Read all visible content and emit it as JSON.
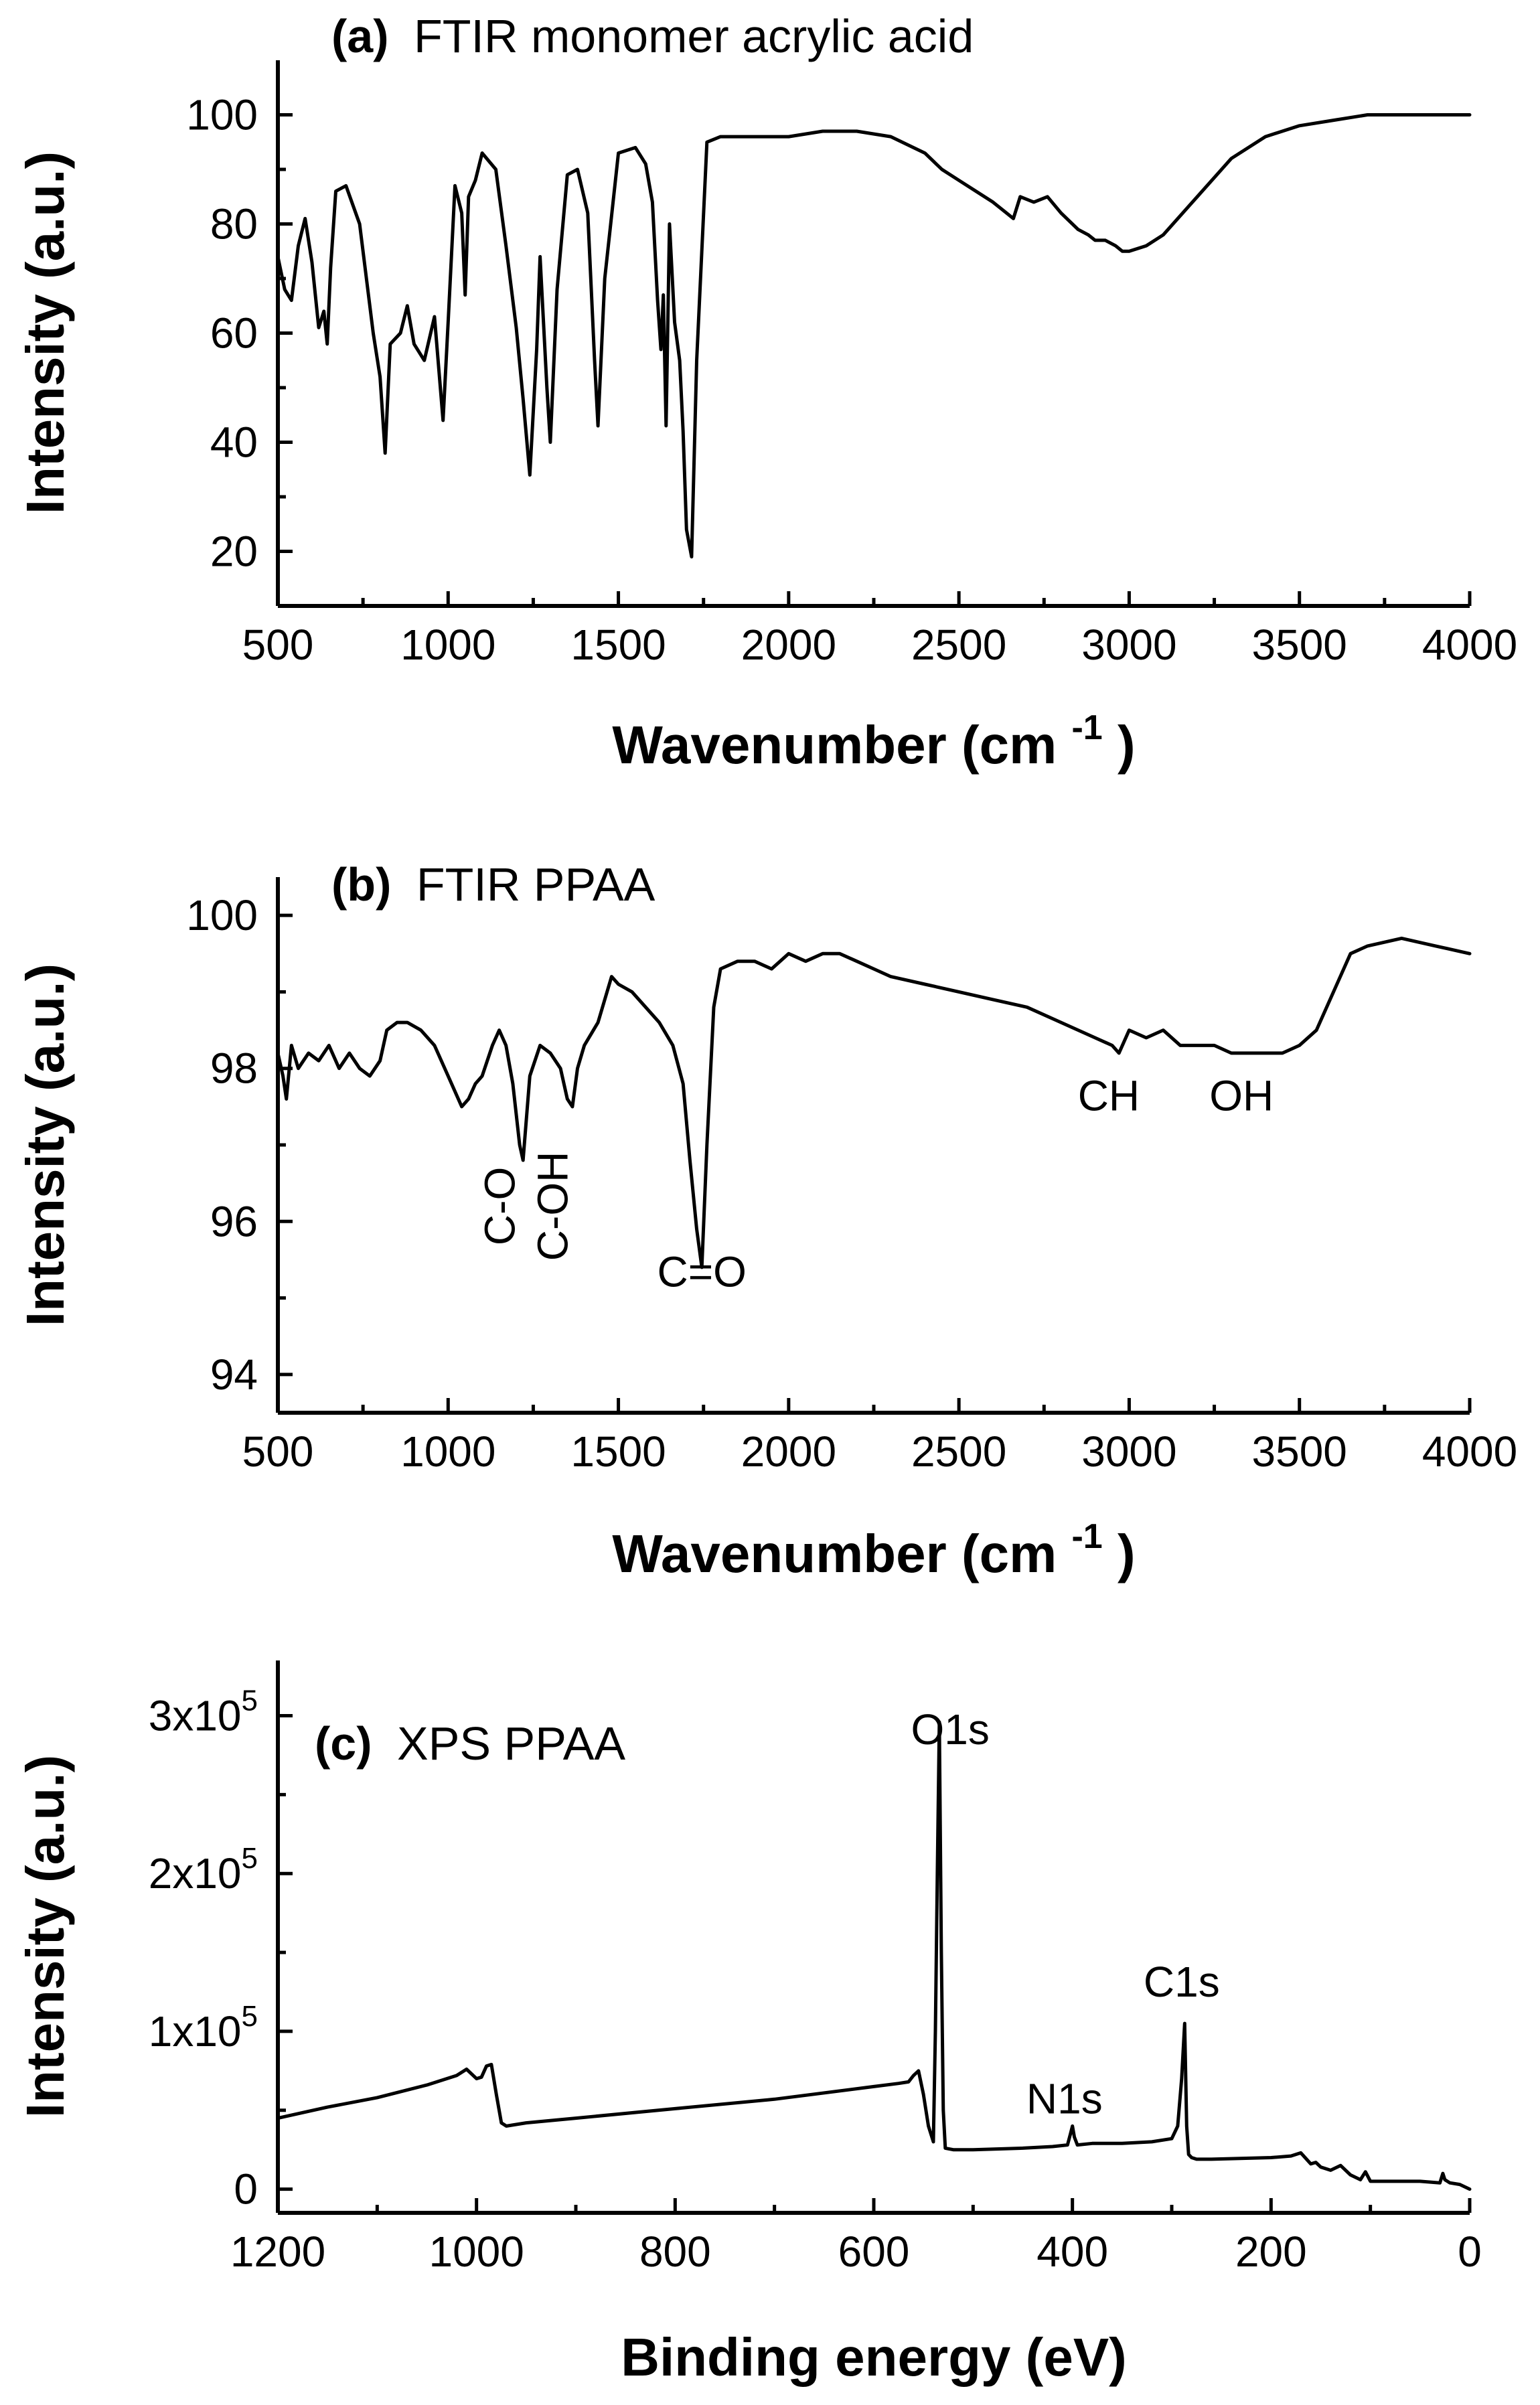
{
  "chart_data": [
    {
      "type": "line",
      "title_tag": "(a)",
      "title": "FTIR monomer acrylic acid",
      "xlabel": "Wavenumber (cm",
      "xlabel_sup": "-1",
      "xlabel_end": ")",
      "ylabel": "Intensity (a.u.)",
      "xlim": [
        500,
        4000
      ],
      "ylim": [
        10,
        110
      ],
      "xticks": [
        500,
        1000,
        1500,
        2000,
        2500,
        3000,
        3500,
        4000
      ],
      "xtick_labels": [
        "500",
        "1000",
        "1500",
        "2000",
        "2500",
        "3000",
        "3500",
        "4000"
      ],
      "yticks": [
        20,
        40,
        60,
        80,
        100
      ],
      "ytick_labels": [
        "20",
        "40",
        "60",
        "80",
        "100"
      ],
      "annotations": [],
      "series": [
        {
          "x": [
            500,
            520,
            540,
            560,
            580,
            600,
            620,
            635,
            645,
            655,
            670,
            700,
            740,
            780,
            800,
            815,
            830,
            860,
            880,
            900,
            930,
            960,
            985,
            1000,
            1020,
            1040,
            1050,
            1060,
            1080,
            1100,
            1140,
            1170,
            1200,
            1220,
            1240,
            1260,
            1270,
            1290,
            1300,
            1320,
            1350,
            1380,
            1410,
            1430,
            1440,
            1460,
            1500,
            1550,
            1580,
            1600,
            1615,
            1625,
            1632,
            1640,
            1650,
            1665,
            1680,
            1690,
            1700,
            1715,
            1730,
            1760,
            1800,
            1900,
            2000,
            2100,
            2200,
            2300,
            2400,
            2450,
            2500,
            2550,
            2600,
            2640,
            2660,
            2680,
            2720,
            2760,
            2800,
            2850,
            2880,
            2900,
            2930,
            2960,
            2980,
            3000,
            3050,
            3100,
            3200,
            3300,
            3400,
            3500,
            3600,
            3700,
            3800,
            3900,
            4000
          ],
          "y": [
            74,
            68,
            66,
            76,
            81,
            73,
            61,
            64,
            58,
            72,
            86,
            87,
            80,
            60,
            52,
            38,
            58,
            60,
            65,
            58,
            55,
            63,
            44,
            62,
            87,
            82,
            67,
            85,
            88,
            93,
            90,
            76,
            61,
            48,
            34,
            57,
            74,
            50,
            40,
            68,
            89,
            90,
            82,
            55,
            43,
            70,
            93,
            94,
            91,
            84,
            66,
            57,
            67,
            43,
            80,
            62,
            55,
            42,
            24,
            19,
            55,
            95,
            96,
            96,
            96,
            97,
            97,
            96,
            93,
            90,
            88,
            86,
            84,
            82,
            81,
            85,
            84,
            85,
            82,
            79,
            78,
            77,
            77,
            76,
            75,
            75,
            76,
            78,
            85,
            92,
            96,
            98,
            99,
            100,
            100,
            100,
            100
          ]
        }
      ]
    },
    {
      "type": "line",
      "title_tag": "(b)",
      "title": "FTIR PPAA",
      "xlabel": "Wavenumber (cm",
      "xlabel_sup": "-1",
      "xlabel_end": ")",
      "ylabel": "Intensity (a.u.)",
      "xlim": [
        500,
        4000
      ],
      "ylim": [
        93.5,
        100.5
      ],
      "xticks": [
        500,
        1000,
        1500,
        2000,
        2500,
        3000,
        3500,
        4000
      ],
      "xtick_labels": [
        "500",
        "1000",
        "1500",
        "2000",
        "2500",
        "3000",
        "3500",
        "4000"
      ],
      "yticks": [
        94,
        96,
        98,
        100
      ],
      "ytick_labels": [
        "94",
        "96",
        "98",
        "100"
      ],
      "annotations": [
        {
          "text": "C-O",
          "x": 1195,
          "y": 96.2,
          "rotate": -90
        },
        {
          "text": "C-OH",
          "x": 1350,
          "y": 96.2,
          "rotate": -90
        },
        {
          "text": "C=O",
          "x": 1745,
          "y": 95.15,
          "rotate": 0
        },
        {
          "text": "CH",
          "x": 2940,
          "y": 97.45,
          "rotate": 0
        },
        {
          "text": "OH",
          "x": 3330,
          "y": 97.45,
          "rotate": 0
        }
      ],
      "series": [
        {
          "x": [
            500,
            515,
            525,
            540,
            560,
            590,
            620,
            650,
            680,
            710,
            740,
            770,
            800,
            820,
            850,
            880,
            920,
            960,
            1000,
            1040,
            1060,
            1080,
            1100,
            1130,
            1150,
            1170,
            1190,
            1210,
            1220,
            1240,
            1270,
            1300,
            1330,
            1350,
            1365,
            1380,
            1400,
            1440,
            1480,
            1500,
            1540,
            1580,
            1620,
            1660,
            1690,
            1710,
            1730,
            1745,
            1760,
            1780,
            1800,
            1850,
            1900,
            1950,
            2000,
            2050,
            2100,
            2150,
            2200,
            2250,
            2300,
            2400,
            2500,
            2600,
            2700,
            2800,
            2900,
            2950,
            2970,
            3000,
            3050,
            3100,
            3150,
            3200,
            3250,
            3300,
            3350,
            3400,
            3450,
            3500,
            3550,
            3600,
            3650,
            3700,
            3800,
            3900,
            4000
          ],
          "y": [
            98.2,
            97.9,
            97.6,
            98.3,
            98.0,
            98.2,
            98.1,
            98.3,
            98.0,
            98.2,
            98.0,
            97.9,
            98.1,
            98.5,
            98.6,
            98.6,
            98.5,
            98.3,
            97.9,
            97.5,
            97.6,
            97.8,
            97.9,
            98.3,
            98.5,
            98.3,
            97.8,
            97.0,
            96.8,
            97.9,
            98.3,
            98.2,
            98.0,
            97.6,
            97.5,
            98.0,
            98.3,
            98.6,
            99.2,
            99.1,
            99.0,
            98.8,
            98.6,
            98.3,
            97.8,
            96.8,
            95.9,
            95.4,
            97.0,
            98.8,
            99.3,
            99.4,
            99.4,
            99.3,
            99.5,
            99.4,
            99.5,
            99.5,
            99.4,
            99.3,
            99.2,
            99.1,
            99.0,
            98.9,
            98.8,
            98.6,
            98.4,
            98.3,
            98.2,
            98.5,
            98.4,
            98.5,
            98.3,
            98.3,
            98.3,
            98.2,
            98.2,
            98.2,
            98.2,
            98.3,
            98.5,
            99.0,
            99.5,
            99.6,
            99.7,
            99.6,
            99.5
          ]
        }
      ]
    },
    {
      "type": "line",
      "title_tag": "(c)",
      "title": "XPS PPAA",
      "xlabel": "Binding energy (eV)",
      "ylabel": "Intensity (a.u.)",
      "xlim": [
        1200,
        0
      ],
      "ylim": [
        -15000,
        335000
      ],
      "xticks": [
        1200,
        1000,
        800,
        600,
        400,
        200,
        0
      ],
      "xtick_labels": [
        "1200",
        "1000",
        "800",
        "600",
        "400",
        "200",
        "0"
      ],
      "yticks": [
        0,
        100000,
        200000,
        300000
      ],
      "ytick_labels": [
        {
          "base": "0",
          "exp": ""
        },
        {
          "base": "1x10",
          "exp": "5"
        },
        {
          "base": "2x10",
          "exp": "5"
        },
        {
          "base": "3x10",
          "exp": "5"
        }
      ],
      "annotations": [
        {
          "text": "O1s",
          "x": 523,
          "y": 282000,
          "rotate": 0
        },
        {
          "text": "N1s",
          "x": 408,
          "y": 48000,
          "rotate": 0
        },
        {
          "text": "C1s",
          "x": 290,
          "y": 122000,
          "rotate": 0
        }
      ],
      "series": [
        {
          "x": [
            1200,
            1150,
            1100,
            1050,
            1020,
            1010,
            1005,
            1000,
            995,
            990,
            985,
            980,
            975,
            970,
            960,
            950,
            900,
            800,
            700,
            600,
            575,
            565,
            560,
            555,
            550,
            545,
            540,
            538,
            536,
            534,
            532,
            530,
            528,
            520,
            500,
            450,
            420,
            405,
            402,
            400,
            398,
            395,
            380,
            350,
            320,
            300,
            294,
            290,
            287,
            285,
            283,
            280,
            275,
            260,
            200,
            180,
            170,
            160,
            155,
            150,
            140,
            130,
            120,
            110,
            105,
            100,
            80,
            50,
            30,
            27,
            25,
            20,
            10,
            0
          ],
          "y": [
            45000,
            52000,
            58000,
            66000,
            72000,
            76000,
            73000,
            70000,
            71000,
            78000,
            79000,
            60000,
            42000,
            40000,
            41000,
            42000,
            45000,
            51000,
            57000,
            65000,
            67000,
            68000,
            72000,
            75000,
            60000,
            40000,
            30000,
            100000,
            200000,
            296000,
            150000,
            50000,
            26000,
            25000,
            25000,
            26000,
            27000,
            28000,
            35000,
            40000,
            33000,
            28000,
            29000,
            29000,
            30000,
            32000,
            40000,
            70000,
            105000,
            40000,
            22000,
            20000,
            19000,
            19000,
            20000,
            21000,
            23000,
            16000,
            17000,
            14000,
            12000,
            15000,
            9000,
            6000,
            11000,
            5000,
            5000,
            5000,
            4000,
            10000,
            6000,
            4000,
            3000,
            0
          ]
        }
      ]
    }
  ]
}
